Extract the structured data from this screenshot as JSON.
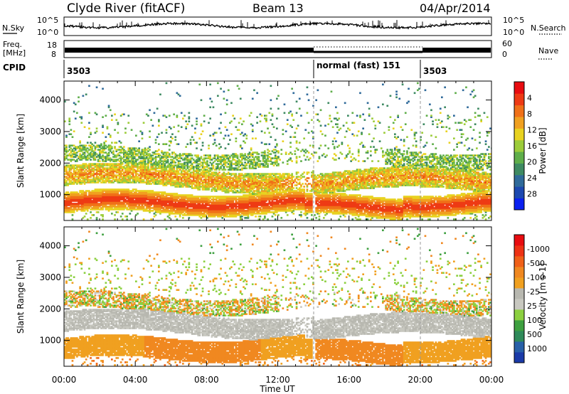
{
  "header": {
    "station": "Clyde River (fitACF)",
    "beam": "Beam 13",
    "date": "04/Apr/2014"
  },
  "noise_panel": {
    "left_label": "N.Sky",
    "right_label": "N.Search",
    "left_ticks": [
      "10^5",
      "10^0"
    ],
    "right_ticks": [
      "10^5",
      "10^0"
    ]
  },
  "freq_panel": {
    "left_label_line1": "Freq.",
    "left_label_line2": "[MHz]",
    "left_ticks": [
      "18",
      "8"
    ],
    "right_label": "Nave",
    "right_ticks": [
      "60",
      "0"
    ]
  },
  "cpid": {
    "label": "CPID",
    "segments": [
      {
        "text": "3503",
        "start_hour": 0
      },
      {
        "text": "normal (fast) 151",
        "start_hour": 14
      },
      {
        "text": "3503",
        "start_hour": 20
      }
    ]
  },
  "chart_data": [
    {
      "type": "heatmap",
      "quantity": "power",
      "ylabel": "Slant Range [km]",
      "xlabel": "",
      "xlim": [
        0,
        24
      ],
      "ylim": [
        180,
        4600
      ],
      "yticks": [
        "1000",
        "2000",
        "3000",
        "4000"
      ],
      "colorbar": {
        "label": "Power [dB]",
        "ticks": [
          "4",
          "8",
          "12",
          "16",
          "20",
          "24",
          "28"
        ],
        "colors": [
          "#0a20f0",
          "#1c48b0",
          "#2f6a9a",
          "#3e8a62",
          "#5fae4a",
          "#9ccc3a",
          "#e8d220",
          "#f0a020",
          "#f07018",
          "#ee3a14",
          "#e80c10"
        ]
      }
    },
    {
      "type": "heatmap",
      "quantity": "velocity",
      "ylabel": "Slant Range [km]",
      "xlabel": "Time UT",
      "xlim": [
        0,
        24
      ],
      "ylim": [
        180,
        4600
      ],
      "xticks": [
        "00:00",
        "04:00",
        "08:00",
        "12:00",
        "16:00",
        "20:00",
        "00:00"
      ],
      "yticks": [
        "1000",
        "2000",
        "3000",
        "4000"
      ],
      "colorbar": {
        "label": "Velocity [m s-1]",
        "ticks": [
          "1000",
          "500",
          "100",
          "25",
          "-25",
          "-100",
          "-500",
          "-1000"
        ],
        "colors": [
          "#1a3aa8",
          "#2860a8",
          "#2f8a5a",
          "#3ea040",
          "#8cd040",
          "#c8c8c0",
          "#b8b8b0",
          "#f0a020",
          "#f08820",
          "#f06018",
          "#ee3214",
          "#e80c10"
        ]
      }
    }
  ]
}
